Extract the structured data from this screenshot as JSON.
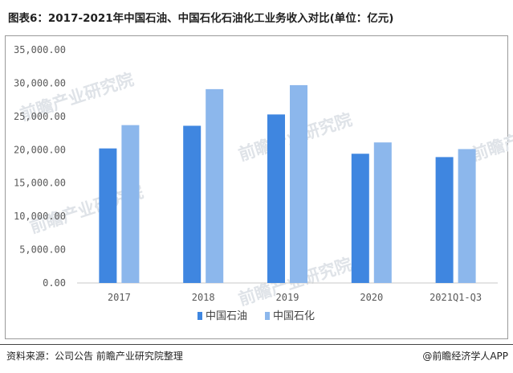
{
  "title": "图表6：2017-2021年中国石油、中国石化石油化工业务收入对比(单位：亿元)",
  "source": "资料来源：公司公告 前瞻产业研究院整理",
  "brand": "@前瞻经济学人APP",
  "watermark": "前瞻产业研究院",
  "colors": {
    "series1": "#3f86e0",
    "series2": "#8cb7ec"
  },
  "chart_data": {
    "type": "bar",
    "title": "图表6：2017-2021年中国石油、中国石化石油化工业务收入对比(单位：亿元)",
    "categories": [
      "2017",
      "2018",
      "2019",
      "2020",
      "2021Q1-Q3"
    ],
    "series": [
      {
        "name": "中国石油",
        "values": [
          20200,
          23600,
          25300,
          19400,
          18900
        ]
      },
      {
        "name": "中国石化",
        "values": [
          23700,
          29100,
          29700,
          21100,
          20100
        ]
      }
    ],
    "ylim": [
      0,
      35000
    ],
    "yticks": [
      "0.00",
      "5,000.00",
      "10,000.00",
      "15,000.00",
      "20,000.00",
      "25,000.00",
      "30,000.00",
      "35,000.00"
    ],
    "xlabel": "",
    "ylabel": "",
    "legend": "bottom",
    "grid": false
  }
}
